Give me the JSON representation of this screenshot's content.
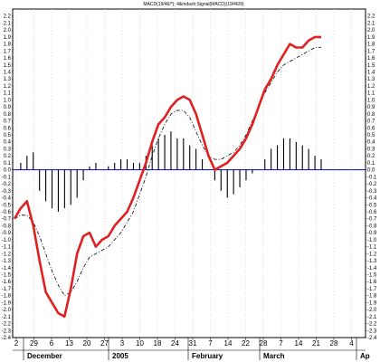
{
  "chart_data": {
    "type": "line",
    "title": "MACD(19/46/*); 4&mdash;Signal(MACD)(19/46/9)",
    "y_axis": {
      "min": -2.4,
      "max": 2.3,
      "ticks": [
        2.2,
        2.1,
        2.0,
        1.9,
        1.8,
        1.7,
        1.6,
        1.5,
        1.4,
        1.3,
        1.2,
        1.1,
        1.0,
        0.9,
        0.8,
        0.7,
        0.6,
        0.5,
        0.4,
        0.3,
        0.2,
        0.1,
        0.0,
        -0.1,
        -0.2,
        -0.3,
        -0.4,
        -0.5,
        -0.6,
        -0.7,
        -0.8,
        -0.9,
        -1.0,
        -1.1,
        -1.2,
        -1.3,
        -1.4,
        -1.5,
        -1.6,
        -1.7,
        -1.8,
        -1.9,
        -2.0,
        -2.1,
        -2.2,
        -2.3,
        -2.4
      ]
    },
    "x_axis": {
      "date_labels": [
        "2",
        "29",
        "6",
        "13",
        "20",
        "27",
        "3",
        "10",
        "18",
        "24",
        "31",
        "7",
        "14",
        "22",
        "28",
        "7",
        "14",
        "21",
        "28",
        "4"
      ],
      "month_labels": [
        "December",
        "2005",
        "February",
        "March",
        "Ap"
      ]
    },
    "series": [
      {
        "name": "MACD",
        "color": "#e02020",
        "values": [
          -0.7,
          -0.55,
          -0.45,
          -0.8,
          -1.3,
          -1.75,
          -1.9,
          -2.05,
          -2.1,
          -1.7,
          -1.2,
          -0.95,
          -0.9,
          -1.1,
          -1.0,
          -0.95,
          -0.8,
          -0.7,
          -0.6,
          -0.4,
          -0.15,
          0.1,
          0.4,
          0.65,
          0.75,
          0.9,
          1.0,
          1.05,
          1.0,
          0.8,
          0.5,
          0.2,
          0.0,
          0.05,
          0.1,
          0.2,
          0.3,
          0.45,
          0.65,
          0.9,
          1.15,
          1.3,
          1.5,
          1.65,
          1.8,
          1.75,
          1.75,
          1.85,
          1.9,
          1.9
        ]
      },
      {
        "name": "Signal",
        "color": "#000000",
        "values": [
          -0.7,
          -0.65,
          -0.65,
          -0.75,
          -0.95,
          -1.2,
          -1.45,
          -1.65,
          -1.8,
          -1.75,
          -1.6,
          -1.4,
          -1.25,
          -1.2,
          -1.15,
          -1.1,
          -1.0,
          -0.9,
          -0.75,
          -0.6,
          -0.35,
          -0.1,
          0.2,
          0.45,
          0.65,
          0.8,
          0.85,
          0.85,
          0.75,
          0.55,
          0.35,
          0.2,
          0.15,
          0.15,
          0.2,
          0.25,
          0.35,
          0.5,
          0.7,
          0.9,
          1.1,
          1.25,
          1.4,
          1.5,
          1.55,
          1.6,
          1.65,
          1.7,
          1.75,
          1.75
        ]
      }
    ],
    "histogram": {
      "name": "Histogram",
      "color": "#000000",
      "values": [
        0.0,
        0.1,
        0.2,
        0.25,
        -0.3,
        -0.45,
        -0.55,
        -0.6,
        -0.55,
        -0.5,
        -0.4,
        -0.15,
        0.05,
        0.1,
        0.0,
        0.05,
        0.1,
        0.15,
        0.15,
        0.1,
        0.1,
        0.2,
        0.35,
        0.45,
        0.5,
        0.55,
        0.45,
        0.45,
        0.35,
        0.3,
        0.15,
        0.0,
        -0.15,
        -0.3,
        -0.4,
        -0.35,
        -0.25,
        -0.15,
        -0.05,
        0.0,
        0.15,
        0.3,
        0.35,
        0.45,
        0.45,
        0.4,
        0.35,
        0.3,
        0.2,
        0.15
      ]
    },
    "zero_line_color": "#0000cc"
  }
}
